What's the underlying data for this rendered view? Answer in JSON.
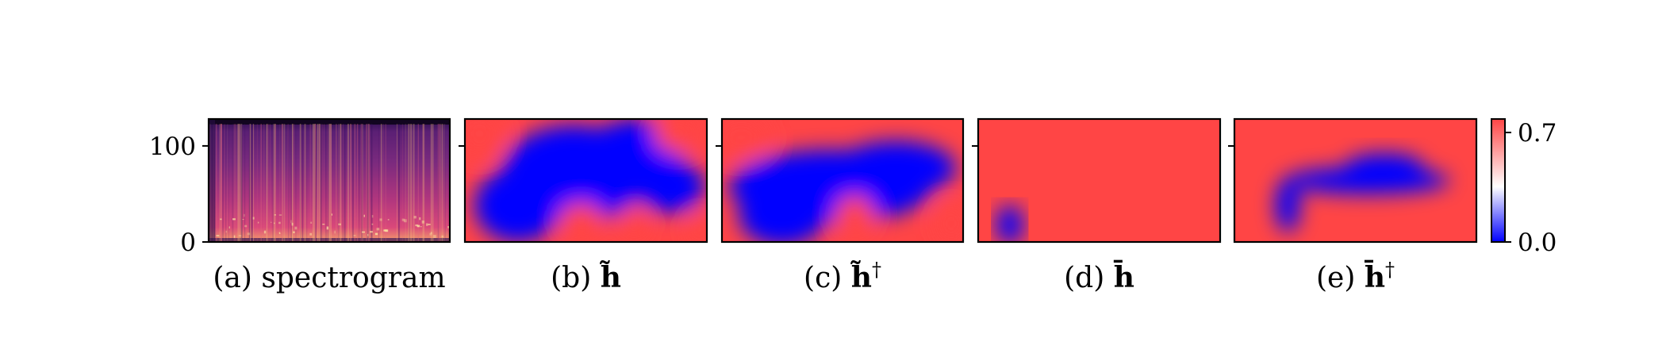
{
  "chart_data": [
    {
      "panel": "a",
      "type": "heatmap",
      "caption_prefix": "(a)",
      "caption_text": "spectrogram",
      "colormap": "magma",
      "y_ticks": [
        0,
        100
      ],
      "y_tick_labels": [
        "0",
        "100"
      ],
      "ylim": [
        0,
        128
      ]
    },
    {
      "panel": "b",
      "type": "heatmap",
      "caption_prefix": "(b)",
      "caption_symbol": "h",
      "caption_accent": "tilde",
      "caption_super": "",
      "colormap": "bwr",
      "blue_blobs": [
        {
          "cx": 0.45,
          "cy": 0.45,
          "rx": 0.3,
          "ry": 0.4
        },
        {
          "cx": 0.7,
          "cy": 0.3,
          "rx": 0.2,
          "ry": 0.3
        },
        {
          "cx": 0.22,
          "cy": 0.7,
          "rx": 0.18,
          "ry": 0.3
        },
        {
          "cx": 0.85,
          "cy": 0.55,
          "rx": 0.14,
          "ry": 0.22
        }
      ],
      "red_blobs": [
        {
          "cx": 0.06,
          "cy": 0.12,
          "rx": 0.1,
          "ry": 0.2
        },
        {
          "cx": 0.88,
          "cy": 0.12,
          "rx": 0.1,
          "ry": 0.16
        },
        {
          "cx": 0.97,
          "cy": 0.9,
          "rx": 0.05,
          "ry": 0.14
        },
        {
          "cx": 0.48,
          "cy": 0.82,
          "rx": 0.09,
          "ry": 0.14
        },
        {
          "cx": 0.7,
          "cy": 0.85,
          "rx": 0.06,
          "ry": 0.12
        }
      ]
    },
    {
      "panel": "c",
      "type": "heatmap",
      "caption_prefix": "(c)",
      "caption_symbol": "h",
      "caption_accent": "tilde",
      "caption_super": "†",
      "colormap": "bwr",
      "blue_blobs": [
        {
          "cx": 0.45,
          "cy": 0.55,
          "rx": 0.42,
          "ry": 0.3
        },
        {
          "cx": 0.25,
          "cy": 0.78,
          "rx": 0.18,
          "ry": 0.25
        },
        {
          "cx": 0.72,
          "cy": 0.4,
          "rx": 0.25,
          "ry": 0.22
        }
      ],
      "red_blobs": [
        {
          "cx": 0.08,
          "cy": 0.15,
          "rx": 0.12,
          "ry": 0.18
        },
        {
          "cx": 0.55,
          "cy": 0.78,
          "rx": 0.08,
          "ry": 0.16
        },
        {
          "cx": 0.95,
          "cy": 0.85,
          "rx": 0.06,
          "ry": 0.16
        }
      ]
    },
    {
      "panel": "d",
      "type": "heatmap",
      "caption_prefix": "(d)",
      "caption_symbol": "h",
      "caption_accent": "bar",
      "caption_super": "",
      "colormap": "bwr",
      "blue_blobs": [
        {
          "cx": 0.13,
          "cy": 0.86,
          "rx": 0.055,
          "ry": 0.16
        }
      ],
      "red_blobs": []
    },
    {
      "panel": "e",
      "type": "heatmap",
      "caption_prefix": "(e)",
      "caption_symbol": "h",
      "caption_accent": "bar",
      "caption_super": "†",
      "colormap": "bwr",
      "blue_blobs": [
        {
          "cx": 0.55,
          "cy": 0.5,
          "rx": 0.34,
          "ry": 0.11
        },
        {
          "cx": 0.22,
          "cy": 0.7,
          "rx": 0.05,
          "ry": 0.22
        },
        {
          "cx": 0.62,
          "cy": 0.38,
          "rx": 0.16,
          "ry": 0.1
        }
      ],
      "red_blobs": []
    }
  ],
  "colorbar": {
    "min": 0.0,
    "max": 0.7,
    "tick_labels": [
      "0.7",
      "0.0"
    ],
    "colors": [
      "#0000ff",
      "#ffffff",
      "#ff4545"
    ]
  }
}
